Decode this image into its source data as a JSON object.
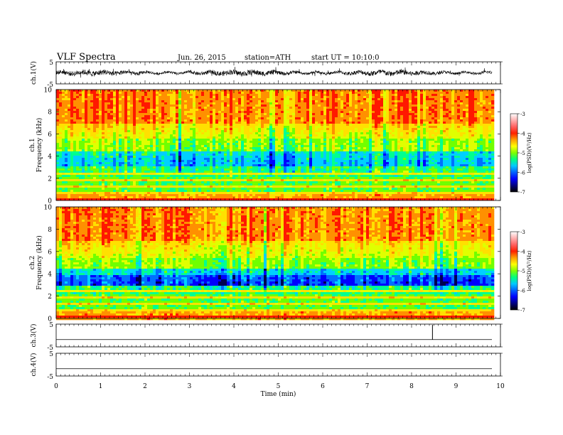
{
  "header": {
    "title": "VLF Spectra",
    "date": "Jun. 26, 2015",
    "station": "station=ATH",
    "start": "start  UT =   10:10:0"
  },
  "colors": {
    "colormap": [
      "#000000",
      "#00007f",
      "#0000ff",
      "#0060ff",
      "#00c8ff",
      "#00ff7f",
      "#7fff00",
      "#ffff00",
      "#ff9f00",
      "#ff2000",
      "#ff6060",
      "#ffb0b0",
      "#ffffff"
    ]
  },
  "chart_data": [
    {
      "type": "line",
      "panel": "ch1-waveform",
      "ylabel": "ch.1(V)",
      "ylim": [
        -5,
        5
      ],
      "yticks": [
        "5",
        "-5"
      ],
      "xlim": [
        0,
        10
      ],
      "description_values": "dense broadband noise centered near 0 V, amplitude about ±1.5 V"
    },
    {
      "type": "heatmap",
      "panel": "ch1-spectrogram",
      "ylabel": "ch.1\nFrequency  (kHz)",
      "ylabel_lines": [
        "ch.1",
        "Frequency  (kHz)"
      ],
      "ylim": [
        0,
        10
      ],
      "yticks": [
        "0",
        "2",
        "4",
        "6",
        "8",
        "10"
      ],
      "xlim": [
        0,
        10
      ],
      "data_end_min": 9.8,
      "colorbar": {
        "label": "log(PSD)(V²/Hz)",
        "range": [
          -7,
          -3
        ],
        "ticks": [
          "-7",
          "-6",
          "-5",
          "-4",
          "-3"
        ]
      }
    },
    {
      "type": "heatmap",
      "panel": "ch2-spectrogram",
      "ylabel": "ch.2\nFrequency  (kHz)",
      "ylabel_lines": [
        "ch.2",
        "Frequency  (kHz)"
      ],
      "ylim": [
        0,
        10
      ],
      "yticks": [
        "0",
        "2",
        "4",
        "6",
        "8",
        "10"
      ],
      "xlim": [
        0,
        10
      ],
      "data_end_min": 9.8,
      "colorbar": {
        "label": "log(PSD)(V²/Hz)",
        "range": [
          -7,
          -3
        ],
        "ticks": [
          "-7",
          "-6",
          "-5",
          "-4",
          "-3"
        ]
      }
    },
    {
      "type": "line",
      "panel": "ch3-waveform",
      "ylabel": "ch.3(V)",
      "ylim": [
        -5,
        5
      ],
      "yticks": [
        "5",
        "-5"
      ],
      "xlim": [
        0,
        10
      ],
      "spike_at_min": 8.47
    },
    {
      "type": "line",
      "panel": "ch4-waveform",
      "ylabel": "ch.4(V)",
      "ylim": [
        -5,
        5
      ],
      "yticks": [
        "5",
        "-5"
      ],
      "xlim": [
        0,
        10
      ],
      "xlabel": "Time  (min)",
      "xticks": [
        "0",
        "1",
        "2",
        "3",
        "4",
        "5",
        "6",
        "7",
        "8",
        "9",
        "10"
      ]
    }
  ]
}
